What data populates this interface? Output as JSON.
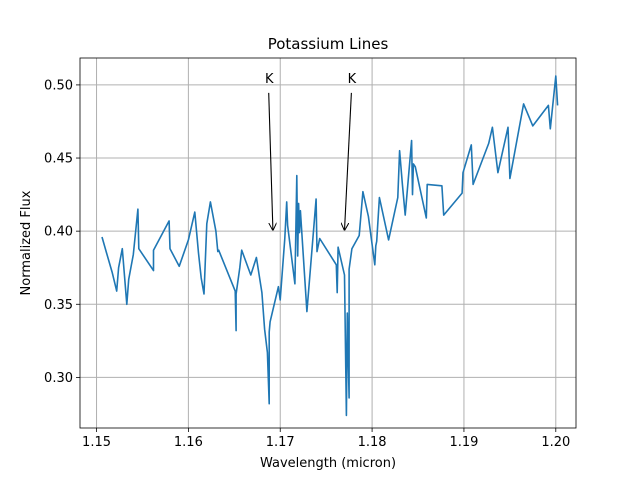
{
  "chart_data": {
    "type": "line",
    "title": "Potassium Lines",
    "xlabel": "Wavelength (micron)",
    "ylabel": "Normalized Flux",
    "xlim": [
      1.1482,
      1.2022
    ],
    "ylim": [
      0.2654,
      0.5184
    ],
    "xticks": [
      1.15,
      1.16,
      1.17,
      1.18,
      1.19,
      1.2
    ],
    "xtick_labels": [
      "1.15",
      "1.16",
      "1.17",
      "1.18",
      "1.19",
      "1.20"
    ],
    "yticks": [
      0.3,
      0.35,
      0.4,
      0.45,
      0.5
    ],
    "ytick_labels": [
      "0.30",
      "0.35",
      "0.40",
      "0.45",
      "0.50"
    ],
    "grid": true,
    "line_color": "#1f77b4",
    "annotations": [
      {
        "text": "K",
        "text_x": 1.1688,
        "text_y": 0.5,
        "arrow_x": 1.1692,
        "arrow_y": 0.401
      },
      {
        "text": "K",
        "text_x": 1.1778,
        "text_y": 0.5,
        "arrow_x": 1.177,
        "arrow_y": 0.401
      }
    ],
    "series": [
      {
        "x": [
          1.1506,
          1.1511,
          1.1517,
          1.1522,
          1.1524,
          1.1528,
          1.1533,
          1.1535,
          1.154,
          1.1545,
          1.1546,
          1.1562,
          1.1562,
          1.1579,
          1.158,
          1.1585,
          1.159,
          1.16,
          1.1607,
          1.1611,
          1.1614,
          1.1617,
          1.162,
          1.1624,
          1.163,
          1.1632,
          1.1633,
          1.1651,
          1.1652,
          1.1652,
          1.1656,
          1.1658,
          1.1668,
          1.1674,
          1.168,
          1.1683,
          1.1686,
          1.1688,
          1.1688,
          1.1689,
          1.1698,
          1.17,
          1.1705,
          1.1707,
          1.1708,
          1.1716,
          1.1718,
          1.1719,
          1.172,
          1.1721,
          1.1722,
          1.1729,
          1.1733,
          1.1739,
          1.174,
          1.1743,
          1.1761,
          1.1762,
          1.1763,
          1.177,
          1.1772,
          1.1773,
          1.1775,
          1.1775,
          1.1778,
          1.1786,
          1.179,
          1.1796,
          1.1803,
          1.1804,
          1.1805,
          1.1808,
          1.1818,
          1.1828,
          1.183,
          1.1833,
          1.1836,
          1.1843,
          1.1844,
          1.1845,
          1.1847,
          1.1859,
          1.186,
          1.1876,
          1.1878,
          1.1898,
          1.1899,
          1.1908,
          1.191,
          1.1927,
          1.1931,
          1.1937,
          1.1948,
          1.195,
          1.1965,
          1.1975,
          1.1992,
          1.1994,
          1.2,
          1.2002
        ],
        "y": [
          0.396,
          0.385,
          0.372,
          0.359,
          0.375,
          0.388,
          0.35,
          0.367,
          0.384,
          0.415,
          0.388,
          0.373,
          0.387,
          0.407,
          0.388,
          0.382,
          0.376,
          0.394,
          0.413,
          0.385,
          0.368,
          0.357,
          0.405,
          0.42,
          0.4,
          0.386,
          0.387,
          0.359,
          0.332,
          0.357,
          0.375,
          0.387,
          0.37,
          0.382,
          0.358,
          0.333,
          0.317,
          0.282,
          0.331,
          0.338,
          0.362,
          0.353,
          0.395,
          0.42,
          0.404,
          0.364,
          0.438,
          0.383,
          0.419,
          0.399,
          0.414,
          0.345,
          0.375,
          0.422,
          0.386,
          0.395,
          0.377,
          0.358,
          0.389,
          0.37,
          0.274,
          0.344,
          0.286,
          0.374,
          0.388,
          0.397,
          0.427,
          0.41,
          0.377,
          0.39,
          0.393,
          0.423,
          0.394,
          0.423,
          0.455,
          0.432,
          0.411,
          0.462,
          0.425,
          0.446,
          0.444,
          0.409,
          0.432,
          0.431,
          0.411,
          0.426,
          0.44,
          0.459,
          0.432,
          0.46,
          0.471,
          0.44,
          0.471,
          0.436,
          0.487,
          0.472,
          0.486,
          0.47,
          0.506,
          0.486
        ]
      }
    ]
  }
}
